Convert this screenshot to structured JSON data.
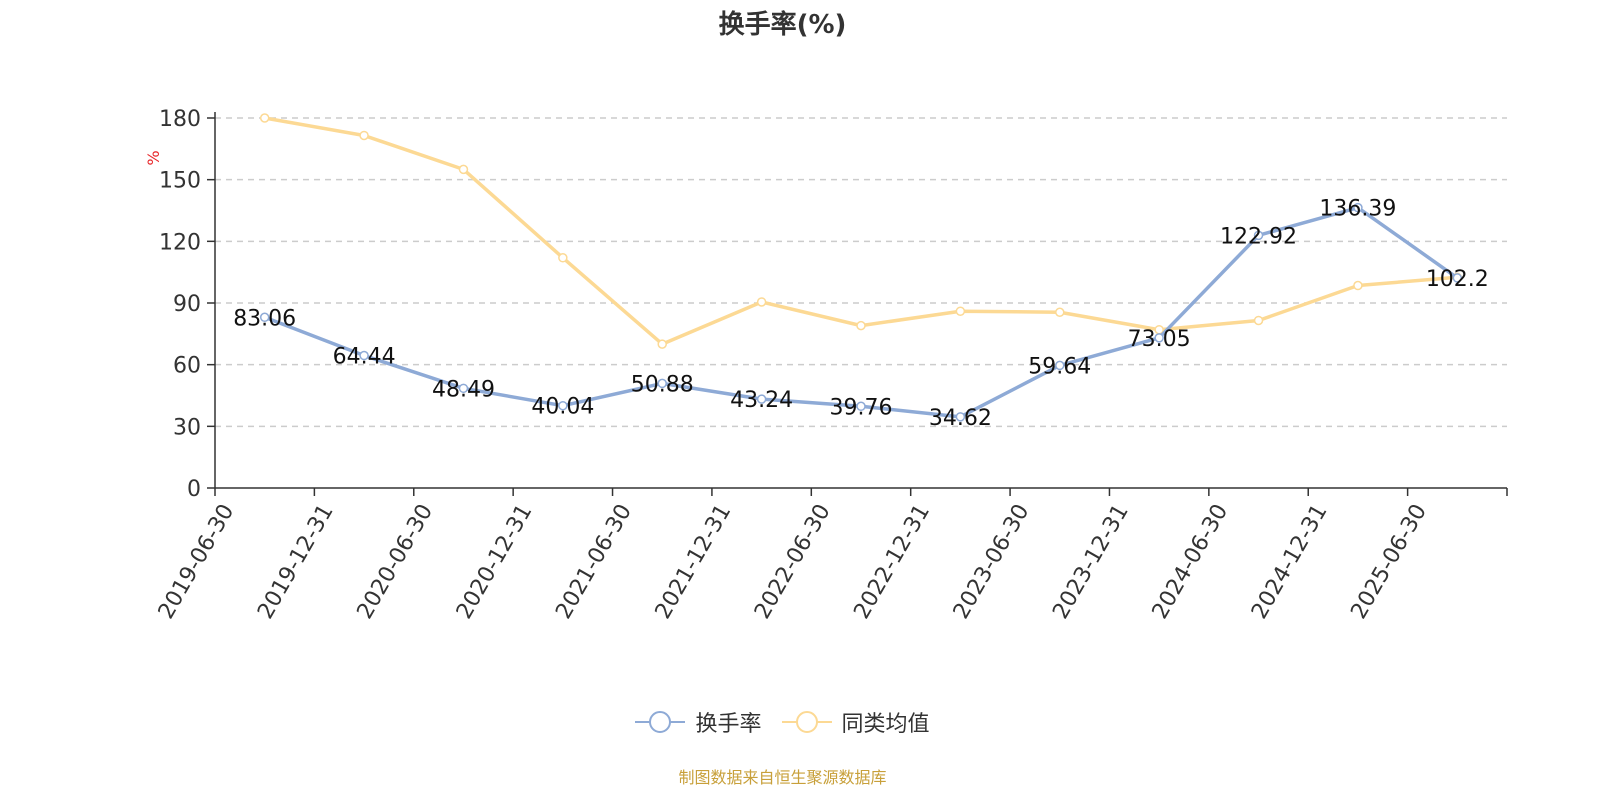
{
  "chart_data": {
    "type": "line",
    "title": "换手率(%)",
    "ylabel": "%",
    "xlabel": "",
    "ylim": [
      0,
      180
    ],
    "yticks": [
      0,
      30,
      60,
      90,
      120,
      150,
      180
    ],
    "grid": true,
    "legend_position": "bottom",
    "categories": [
      "2019-06-30",
      "2019-12-31",
      "2020-06-30",
      "2020-12-31",
      "2021-06-30",
      "2021-12-31",
      "2022-06-30",
      "2022-12-31",
      "2023-06-30",
      "2023-12-31",
      "2024-06-30",
      "2024-12-31",
      "2025-06-30"
    ],
    "series": [
      {
        "name": "换手率",
        "color": "#8eaad6",
        "show_labels": true,
        "values": [
          83.06,
          64.44,
          48.49,
          40.04,
          50.88,
          43.24,
          39.76,
          34.62,
          59.64,
          73.05,
          122.92,
          136.39,
          102.2
        ]
      },
      {
        "name": "同类均值",
        "color": "#fcd994",
        "show_labels": false,
        "values": [
          180,
          171.5,
          155,
          112,
          70,
          90.5,
          79,
          86,
          85.5,
          77,
          81.5,
          98.5,
          102.5
        ]
      }
    ]
  },
  "source": "制图数据来自恒生聚源数据库",
  "colors": {
    "axis": "#333333",
    "grid": "#cccccc",
    "ylabel": "#e8262a",
    "source": "#c8a03a"
  }
}
